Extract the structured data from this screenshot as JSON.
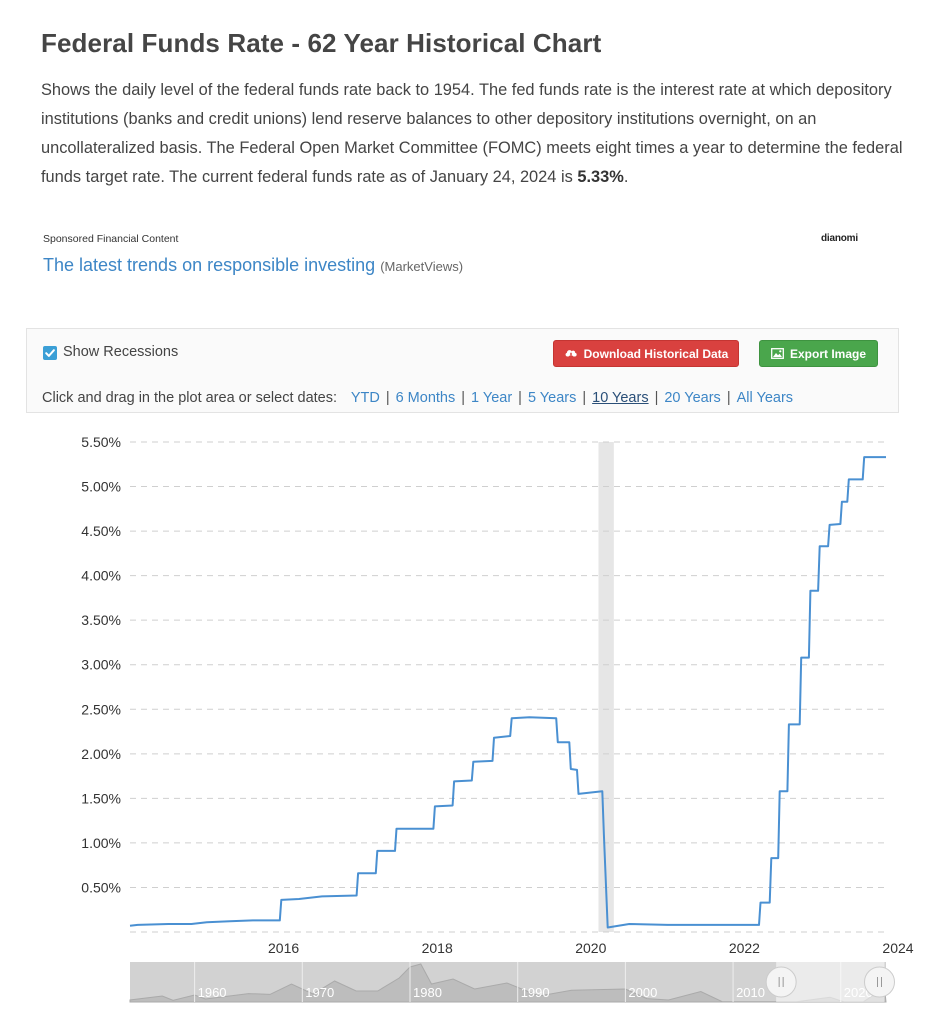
{
  "page": {
    "title": "Federal Funds Rate - 62 Year Historical Chart",
    "description_intro": "Shows the daily level of the federal funds rate back to 1954. The fed funds rate is the interest rate at which depository institutions (banks and credit unions) lend reserve balances to other depository institutions overnight, on an uncollateralized basis. The Federal Open Market Committee (FOMC) meets eight times a year to determine the federal funds target rate. The current federal funds rate as of January 24, 2024 is ",
    "current_rate": "5.33%",
    "description_end": "."
  },
  "sponsor": {
    "label": "Sponsored Financial Content",
    "brand": "dianomi",
    "headline": "The latest trends on responsible investing",
    "source": "(MarketViews)"
  },
  "controls": {
    "show_recessions_label": "Show Recessions",
    "show_recessions_checked": true,
    "download_label": "Download Historical Data",
    "export_label": "Export Image",
    "range_prompt": "Click and drag in the plot area or select dates:",
    "ranges": [
      "YTD",
      "6 Months",
      "1 Year",
      "5 Years",
      "10 Years",
      "20 Years",
      "All Years"
    ],
    "active_range": "10 Years"
  },
  "colors": {
    "line": "#4a90d2",
    "recession": "#e6e6e6",
    "download_button": "#d9413f",
    "export_button": "#4aa64c",
    "link": "#3d86c6"
  },
  "chart_data": {
    "type": "line",
    "title": "",
    "xlabel": "",
    "ylabel": "",
    "ylim": [
      0,
      5.5
    ],
    "xlim": [
      2014.0,
      2024.0
    ],
    "y_ticks": [
      "0.50%",
      "1.00%",
      "1.50%",
      "2.00%",
      "2.50%",
      "3.00%",
      "3.50%",
      "4.00%",
      "4.50%",
      "5.00%",
      "5.50%"
    ],
    "x_ticks": [
      "2016",
      "2018",
      "2020",
      "2022",
      "2024"
    ],
    "grid": "horizontal dashed",
    "recessions": [
      {
        "start": 2020.1,
        "end": 2020.3
      }
    ],
    "series": [
      {
        "name": "Federal Funds Rate",
        "points": [
          [
            2014.0,
            0.07
          ],
          [
            2014.1,
            0.08
          ],
          [
            2014.5,
            0.09
          ],
          [
            2014.8,
            0.09
          ],
          [
            2015.0,
            0.11
          ],
          [
            2015.3,
            0.12
          ],
          [
            2015.6,
            0.13
          ],
          [
            2015.95,
            0.13
          ],
          [
            2015.97,
            0.36
          ],
          [
            2016.2,
            0.37
          ],
          [
            2016.5,
            0.4
          ],
          [
            2016.95,
            0.41
          ],
          [
            2016.97,
            0.66
          ],
          [
            2017.2,
            0.66
          ],
          [
            2017.22,
            0.91
          ],
          [
            2017.45,
            0.91
          ],
          [
            2017.47,
            1.16
          ],
          [
            2017.95,
            1.16
          ],
          [
            2017.97,
            1.41
          ],
          [
            2018.2,
            1.42
          ],
          [
            2018.22,
            1.69
          ],
          [
            2018.45,
            1.7
          ],
          [
            2018.47,
            1.91
          ],
          [
            2018.72,
            1.92
          ],
          [
            2018.74,
            2.18
          ],
          [
            2018.95,
            2.2
          ],
          [
            2018.97,
            2.4
          ],
          [
            2019.2,
            2.41
          ],
          [
            2019.55,
            2.4
          ],
          [
            2019.57,
            2.13
          ],
          [
            2019.72,
            2.13
          ],
          [
            2019.74,
            1.83
          ],
          [
            2019.82,
            1.82
          ],
          [
            2019.84,
            1.55
          ],
          [
            2020.15,
            1.58
          ],
          [
            2020.17,
            1.09
          ],
          [
            2020.22,
            0.05
          ],
          [
            2020.5,
            0.09
          ],
          [
            2021.0,
            0.08
          ],
          [
            2021.5,
            0.08
          ],
          [
            2022.19,
            0.08
          ],
          [
            2022.21,
            0.33
          ],
          [
            2022.33,
            0.33
          ],
          [
            2022.35,
            0.83
          ],
          [
            2022.44,
            0.83
          ],
          [
            2022.46,
            1.58
          ],
          [
            2022.56,
            1.58
          ],
          [
            2022.58,
            2.33
          ],
          [
            2022.72,
            2.33
          ],
          [
            2022.74,
            3.08
          ],
          [
            2022.84,
            3.08
          ],
          [
            2022.86,
            3.83
          ],
          [
            2022.96,
            3.83
          ],
          [
            2022.98,
            4.33
          ],
          [
            2023.09,
            4.33
          ],
          [
            2023.11,
            4.57
          ],
          [
            2023.25,
            4.58
          ],
          [
            2023.27,
            4.83
          ],
          [
            2023.34,
            4.83
          ],
          [
            2023.36,
            5.08
          ],
          [
            2023.54,
            5.08
          ],
          [
            2023.56,
            5.33
          ],
          [
            2024.06,
            5.33
          ]
        ]
      }
    ],
    "navigator": {
      "x_ticks": [
        "1960",
        "1970",
        "1980",
        "1990",
        "2000",
        "2010",
        "2020"
      ],
      "profile": [
        [
          1954,
          1.0
        ],
        [
          1957,
          3.0
        ],
        [
          1958,
          0.8
        ],
        [
          1960,
          3.5
        ],
        [
          1961,
          1.5
        ],
        [
          1965,
          4.2
        ],
        [
          1967,
          3.8
        ],
        [
          1969,
          9.0
        ],
        [
          1971,
          4.0
        ],
        [
          1973,
          10.5
        ],
        [
          1975,
          5.5
        ],
        [
          1977,
          5.5
        ],
        [
          1979,
          12.0
        ],
        [
          1980,
          17.5
        ],
        [
          1981,
          19.0
        ],
        [
          1982,
          9.0
        ],
        [
          1984,
          11.5
        ],
        [
          1986,
          6.5
        ],
        [
          1989,
          9.5
        ],
        [
          1992,
          3.0
        ],
        [
          1995,
          5.9
        ],
        [
          2000,
          6.5
        ],
        [
          2002,
          1.7
        ],
        [
          2004,
          1.0
        ],
        [
          2007,
          5.25
        ],
        [
          2009,
          0.15
        ],
        [
          2015.9,
          0.12
        ],
        [
          2019,
          2.4
        ],
        [
          2020.3,
          0.05
        ],
        [
          2022.1,
          0.08
        ],
        [
          2023.6,
          5.33
        ],
        [
          2024.1,
          5.33
        ]
      ],
      "selected_range": [
        2014.0,
        2024.06
      ]
    }
  }
}
